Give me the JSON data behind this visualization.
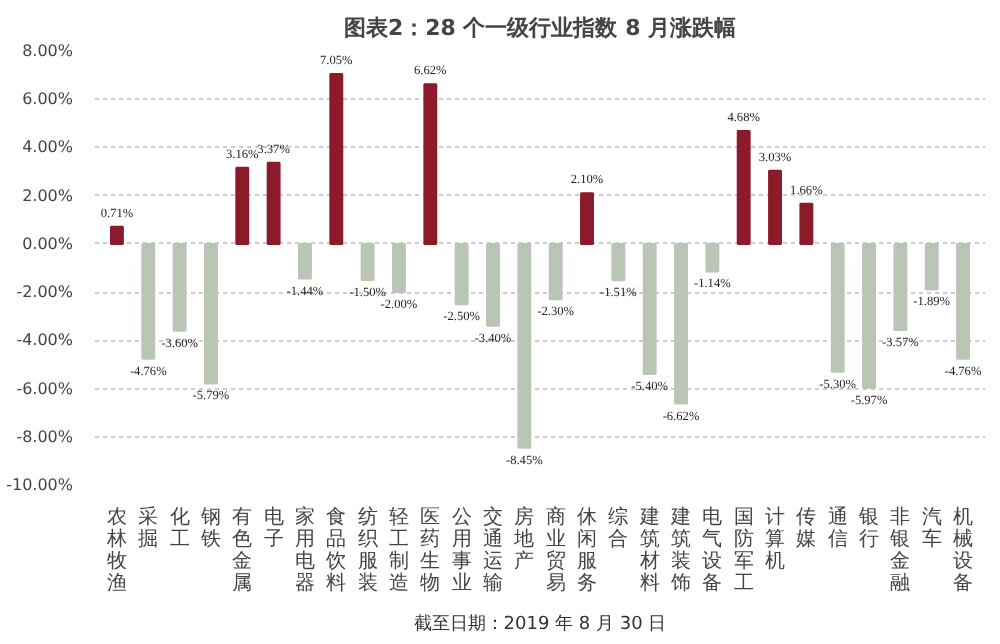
{
  "chart_data": {
    "type": "bar",
    "title": "图表2：28 个一级行业指数 8 月涨跌幅",
    "categories": [
      "农林牧渔",
      "采掘",
      "化工",
      "钢铁",
      "有色金属",
      "电子",
      "家用电器",
      "食品饮料",
      "纺织服装",
      "轻工制造",
      "医药生物",
      "公用事业",
      "交通运输",
      "房地产",
      "商业贸易",
      "休闲服务",
      "综合",
      "建筑材料",
      "建筑装饰",
      "电气设备",
      "国防军工",
      "计算机",
      "传媒",
      "通信",
      "银行",
      "非银金融",
      "汽车",
      "机械设备"
    ],
    "values": [
      0.71,
      -4.76,
      -3.6,
      -5.79,
      3.16,
      3.37,
      -1.44,
      7.05,
      -1.5,
      -2.0,
      6.62,
      -2.5,
      -3.4,
      -8.45,
      -2.3,
      2.1,
      -1.51,
      -5.4,
      -6.62,
      -1.14,
      4.68,
      3.03,
      1.66,
      -5.3,
      -5.97,
      -3.57,
      -1.89,
      -4.76
    ],
    "value_labels": [
      "0.71%",
      "-4.76%",
      "-3.60%",
      "-5.79%",
      "3.16%",
      "3.37%",
      "-1.44%",
      "7.05%",
      "-1.50%",
      "-2.00%",
      "6.62%",
      "-2.50%",
      "-3.40%",
      "-8.45%",
      "-2.30%",
      "2.10%",
      "-1.51%",
      "-5.40%",
      "-6.62%",
      "-1.14%",
      "4.68%",
      "3.03%",
      "1.66%",
      "-5.30%",
      "-5.97%",
      "-3.57%",
      "-1.89%",
      "-4.76%"
    ],
    "colors": [
      "#8b1a2b",
      "#b9c6b6",
      "#b9c6b6",
      "#b9c6b6",
      "#8b1a2b",
      "#8b1a2b",
      "#b9c6b6",
      "#8b1a2b",
      "#b9c6b6",
      "#b9c6b6",
      "#8b1a2b",
      "#b9c6b6",
      "#b9c6b6",
      "#b9c6b6",
      "#b9c6b6",
      "#8b1a2b",
      "#b9c6b6",
      "#b9c6b6",
      "#b9c6b6",
      "#b9c6b6",
      "#8b1a2b",
      "#8b1a2b",
      "#8b1a2b",
      "#b9c6b6",
      "#b9c6b6",
      "#b9c6b6",
      "#b9c6b6",
      "#b9c6b6"
    ],
    "ylim": [
      -10,
      8
    ],
    "yticks": [
      {
        "value": 8,
        "label": "8.00%"
      },
      {
        "value": 6,
        "label": "6.00%"
      },
      {
        "value": 4,
        "label": "4.00%"
      },
      {
        "value": 2,
        "label": "2.00%"
      },
      {
        "value": 0,
        "label": "0.00%"
      },
      {
        "value": -2,
        "label": "-2.00%"
      },
      {
        "value": -4,
        "label": "-4.00%"
      },
      {
        "value": -6,
        "label": "-6.00%"
      },
      {
        "value": -8,
        "label": "-8.00%"
      },
      {
        "value": -10,
        "label": "-10.00%"
      }
    ],
    "grid": "y",
    "annotations": [
      "截至日期：2019 年 8 月 30 日"
    ]
  }
}
